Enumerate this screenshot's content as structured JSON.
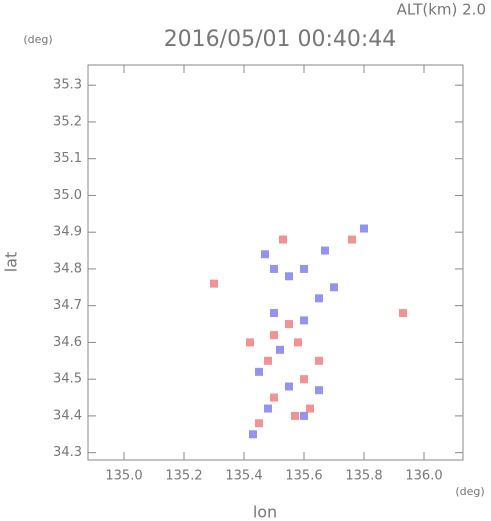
{
  "chart_data": {
    "type": "scatter",
    "title": "2016/05/01 00:40:44",
    "subtitle": "ALT(km) 2.0",
    "x_label": "lon",
    "y_label": "lat",
    "x_unit": "(deg)",
    "y_unit": "(deg)",
    "xlim": [
      134.88,
      136.13
    ],
    "ylim": [
      34.28,
      35.355
    ],
    "xticks": [
      {
        "value": 135.0,
        "label": "135.0"
      },
      135.2,
      135.4,
      135.6,
      135.8,
      {
        "value": 136.0,
        "label": "136.0"
      }
    ],
    "yticks": [
      35.3,
      35.2,
      35.1,
      {
        "value": 35.0,
        "label": "35.0"
      },
      34.9,
      34.8,
      34.7,
      34.6,
      34.5,
      34.4,
      34.3
    ],
    "series": [
      {
        "color": "#f08080",
        "x": [
          135.55,
          135.5,
          135.58,
          135.48,
          135.6,
          135.5,
          135.57,
          135.45,
          135.62,
          135.53,
          135.93,
          135.76,
          135.3,
          135.42,
          135.65
        ],
        "values": [
          34.65,
          34.62,
          34.6,
          34.55,
          34.5,
          34.45,
          34.4,
          34.38,
          34.42,
          34.88,
          34.68,
          34.88,
          34.76,
          34.6,
          34.55
        ]
      },
      {
        "color": "#8080f0",
        "x": [
          135.5,
          135.6,
          135.52,
          135.45,
          135.55,
          135.65,
          135.48,
          135.6,
          135.43,
          135.5,
          135.6,
          135.67,
          135.8,
          135.47,
          135.55,
          135.7,
          135.65
        ],
        "values": [
          34.68,
          34.66,
          34.58,
          34.52,
          34.48,
          34.47,
          34.42,
          34.4,
          34.35,
          34.8,
          34.8,
          34.85,
          34.91,
          34.84,
          34.78,
          34.75,
          34.72
        ]
      }
    ]
  }
}
